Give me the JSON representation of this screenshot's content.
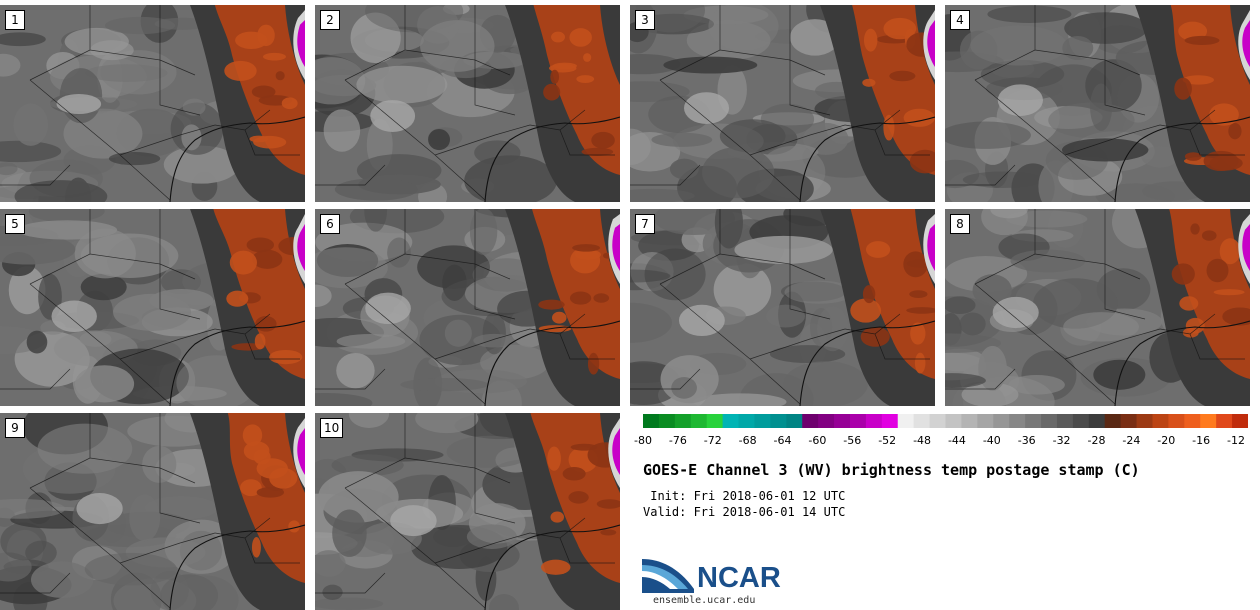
{
  "panels": [
    {
      "label": "1"
    },
    {
      "label": "2"
    },
    {
      "label": "3"
    },
    {
      "label": "4"
    },
    {
      "label": "5"
    },
    {
      "label": "6"
    },
    {
      "label": "7"
    },
    {
      "label": "8"
    },
    {
      "label": "9"
    },
    {
      "label": "10"
    }
  ],
  "colorbar": {
    "colors": [
      "#007a1e",
      "#0a8c22",
      "#14a02a",
      "#1eb832",
      "#28d23c",
      "#00b4b4",
      "#00a8a8",
      "#009c9c",
      "#009090",
      "#008484",
      "#6e006e",
      "#820082",
      "#960096",
      "#aa00aa",
      "#c800c8",
      "#e100e1",
      "#f0f0f0",
      "#e1e1e1",
      "#d2d2d2",
      "#c3c3c3",
      "#b4b4b4",
      "#a5a5a5",
      "#969696",
      "#878787",
      "#787878",
      "#696969",
      "#5a5a5a",
      "#4b4b4b",
      "#3c3c3c",
      "#5a2814",
      "#7a2e14",
      "#9c3a14",
      "#bc4414",
      "#d8501a",
      "#ee5f1e",
      "#ff7a1e",
      "#e0481a",
      "#c02c0c"
    ],
    "ticks": [
      "-80",
      "-76",
      "-72",
      "-68",
      "-64",
      "-60",
      "-56",
      "-52",
      "-48",
      "-44",
      "-40",
      "-36",
      "-32",
      "-28",
      "-24",
      "-20",
      "-16",
      "-12"
    ]
  },
  "title": "GOES-E Channel 3 (WV) brightness temp postage stamp (C)",
  "init_text": " Init: Fri 2018-06-01 12 UTC",
  "valid_text": "Valid: Fri 2018-06-01 14 UTC",
  "logo": {
    "name": "NCAR",
    "url": "ensemble.ucar.edu"
  }
}
